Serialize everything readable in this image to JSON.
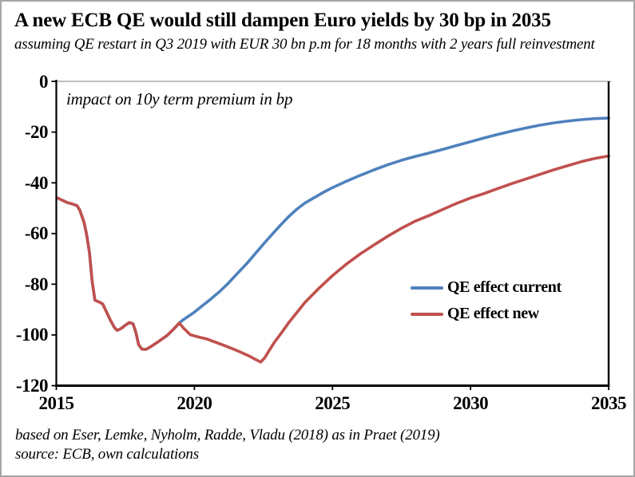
{
  "header": {
    "title": "A new ECB QE would still dampen Euro yields by 30 bp in 2035",
    "subtitle": "assuming QE restart in Q3 2019 with EUR 30 bn p.m for 18 months with 2 years full reinvestment"
  },
  "chart_data": {
    "type": "line",
    "annotation": "impact on 10y term premium in bp",
    "xlim": [
      2015,
      2035
    ],
    "ylim": [
      -120,
      0
    ],
    "x_ticks": [
      2015,
      2020,
      2025,
      2030,
      2035
    ],
    "y_ticks": [
      0,
      -20,
      -40,
      -60,
      -80,
      -100,
      -120
    ],
    "grid": false,
    "legend_position": "inside-right",
    "axis_color": "#000000",
    "plot_top_border_color": "#BFBFBF",
    "series": [
      {
        "name": "QE effect current",
        "color": "#4F81BD",
        "points": [
          [
            2015.05,
            -46.0
          ],
          [
            2015.2,
            -46.8
          ],
          [
            2015.4,
            -47.8
          ],
          [
            2015.6,
            -48.4
          ],
          [
            2015.75,
            -49.0
          ],
          [
            2015.85,
            -50.8
          ],
          [
            2016.0,
            -55.5
          ],
          [
            2016.1,
            -60.5
          ],
          [
            2016.2,
            -67.5
          ],
          [
            2016.3,
            -79.0
          ],
          [
            2016.4,
            -86.3
          ],
          [
            2016.55,
            -87.0
          ],
          [
            2016.68,
            -87.8
          ],
          [
            2016.8,
            -90.5
          ],
          [
            2016.95,
            -94.0
          ],
          [
            2017.1,
            -97.0
          ],
          [
            2017.2,
            -98.2
          ],
          [
            2017.35,
            -97.4
          ],
          [
            2017.5,
            -96.2
          ],
          [
            2017.65,
            -95.1
          ],
          [
            2017.78,
            -95.6
          ],
          [
            2017.88,
            -99.0
          ],
          [
            2017.98,
            -103.8
          ],
          [
            2018.1,
            -105.6
          ],
          [
            2018.25,
            -105.7
          ],
          [
            2018.45,
            -104.4
          ],
          [
            2018.7,
            -102.6
          ],
          [
            2019.0,
            -100.3
          ],
          [
            2019.25,
            -97.7
          ],
          [
            2019.45,
            -95.3
          ],
          [
            2019.6,
            -94.0
          ],
          [
            2019.8,
            -92.5
          ],
          [
            2020.0,
            -91.0
          ],
          [
            2020.3,
            -88.4
          ],
          [
            2020.6,
            -85.8
          ],
          [
            2020.9,
            -83.0
          ],
          [
            2021.2,
            -79.9
          ],
          [
            2021.55,
            -75.8
          ],
          [
            2021.9,
            -71.8
          ],
          [
            2022.2,
            -68.0
          ],
          [
            2022.5,
            -64.2
          ],
          [
            2022.8,
            -60.5
          ],
          [
            2023.1,
            -56.9
          ],
          [
            2023.4,
            -53.5
          ],
          [
            2023.7,
            -50.5
          ],
          [
            2024.0,
            -48.0
          ],
          [
            2024.35,
            -45.8
          ],
          [
            2024.7,
            -43.6
          ],
          [
            2025.0,
            -41.9
          ],
          [
            2025.5,
            -39.4
          ],
          [
            2026.0,
            -37.1
          ],
          [
            2026.5,
            -34.9
          ],
          [
            2027.0,
            -32.9
          ],
          [
            2027.5,
            -31.1
          ],
          [
            2028.0,
            -29.6
          ],
          [
            2028.5,
            -28.2
          ],
          [
            2029.0,
            -26.8
          ],
          [
            2029.5,
            -25.3
          ],
          [
            2030.0,
            -23.8
          ],
          [
            2030.5,
            -22.3
          ],
          [
            2031.0,
            -20.9
          ],
          [
            2031.5,
            -19.6
          ],
          [
            2032.0,
            -18.4
          ],
          [
            2032.5,
            -17.3
          ],
          [
            2033.0,
            -16.4
          ],
          [
            2033.5,
            -15.7
          ],
          [
            2034.0,
            -15.1
          ],
          [
            2034.5,
            -14.7
          ],
          [
            2035.0,
            -14.5
          ]
        ]
      },
      {
        "name": "QE effect new",
        "color": "#C0504D",
        "points": [
          [
            2015.05,
            -46.0
          ],
          [
            2015.2,
            -46.8
          ],
          [
            2015.4,
            -47.8
          ],
          [
            2015.6,
            -48.4
          ],
          [
            2015.75,
            -49.0
          ],
          [
            2015.85,
            -50.8
          ],
          [
            2016.0,
            -55.5
          ],
          [
            2016.1,
            -60.5
          ],
          [
            2016.2,
            -67.5
          ],
          [
            2016.3,
            -79.0
          ],
          [
            2016.4,
            -86.3
          ],
          [
            2016.55,
            -87.0
          ],
          [
            2016.68,
            -87.8
          ],
          [
            2016.8,
            -90.5
          ],
          [
            2016.95,
            -94.0
          ],
          [
            2017.1,
            -97.0
          ],
          [
            2017.2,
            -98.2
          ],
          [
            2017.35,
            -97.4
          ],
          [
            2017.5,
            -96.2
          ],
          [
            2017.65,
            -95.1
          ],
          [
            2017.78,
            -95.6
          ],
          [
            2017.88,
            -99.0
          ],
          [
            2017.98,
            -103.8
          ],
          [
            2018.1,
            -105.6
          ],
          [
            2018.25,
            -105.7
          ],
          [
            2018.45,
            -104.4
          ],
          [
            2018.7,
            -102.6
          ],
          [
            2019.0,
            -100.3
          ],
          [
            2019.25,
            -97.7
          ],
          [
            2019.45,
            -95.3
          ],
          [
            2019.6,
            -97.2
          ],
          [
            2019.85,
            -99.9
          ],
          [
            2020.15,
            -100.8
          ],
          [
            2020.45,
            -101.6
          ],
          [
            2020.7,
            -102.6
          ],
          [
            2021.0,
            -103.8
          ],
          [
            2021.35,
            -105.3
          ],
          [
            2021.7,
            -106.9
          ],
          [
            2022.0,
            -108.4
          ],
          [
            2022.2,
            -109.6
          ],
          [
            2022.4,
            -110.7
          ],
          [
            2022.55,
            -109.0
          ],
          [
            2022.7,
            -106.3
          ],
          [
            2022.9,
            -102.9
          ],
          [
            2023.15,
            -99.2
          ],
          [
            2023.4,
            -95.4
          ],
          [
            2023.7,
            -91.3
          ],
          [
            2024.0,
            -87.2
          ],
          [
            2024.5,
            -81.7
          ],
          [
            2025.0,
            -76.6
          ],
          [
            2025.5,
            -72.1
          ],
          [
            2026.0,
            -68.1
          ],
          [
            2026.5,
            -64.5
          ],
          [
            2027.0,
            -61.1
          ],
          [
            2027.5,
            -57.9
          ],
          [
            2028.0,
            -55.1
          ],
          [
            2028.5,
            -52.9
          ],
          [
            2029.0,
            -50.5
          ],
          [
            2029.5,
            -48.1
          ],
          [
            2030.0,
            -46.0
          ],
          [
            2030.5,
            -44.2
          ],
          [
            2031.0,
            -42.2
          ],
          [
            2031.5,
            -40.3
          ],
          [
            2032.0,
            -38.5
          ],
          [
            2032.5,
            -36.7
          ],
          [
            2033.0,
            -34.9
          ],
          [
            2033.5,
            -33.3
          ],
          [
            2034.0,
            -31.7
          ],
          [
            2034.5,
            -30.4
          ],
          [
            2035.0,
            -29.4
          ]
        ]
      }
    ]
  },
  "footer": {
    "line1": "based on Eser, Lemke, Nyholm, Radde, Vladu (2018) as in Praet (2019)",
    "line2": "source: ECB, own calculations"
  }
}
